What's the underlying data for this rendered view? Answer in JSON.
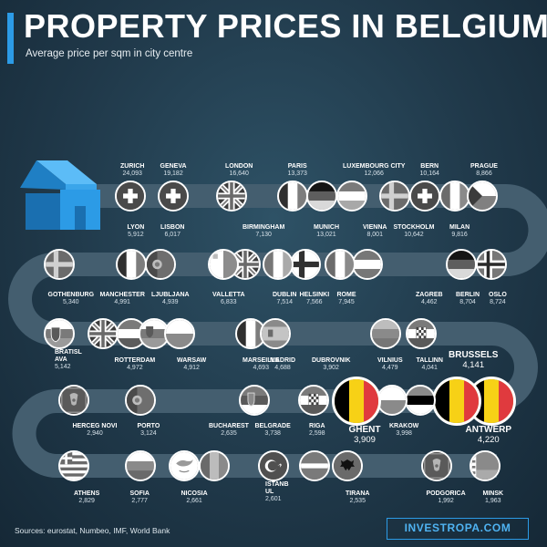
{
  "title": "PROPERTY PRICES IN BELGIUM",
  "subtitle": "Average price per sqm in city centre",
  "sources": "Sources: eurostat, Numbeo, IMF, World Bank",
  "brand": "INVESTROPA.COM",
  "colors": {
    "accent": "#2c9be6",
    "background": "#20394a",
    "road": "#445e6f",
    "house": "#2c9be6"
  },
  "chart_data": {
    "type": "bar",
    "categories": [
      "ZURICH",
      "GENEVA",
      "LONDON",
      "PARIS",
      "LUXEMBOURG CITY",
      "BERN",
      "PRAGUE",
      "LYON",
      "LISBON",
      "BIRMINGHAM",
      "MUNICH",
      "VIENNA",
      "STOCKHOLM",
      "MILAN",
      "GOTHENBURG",
      "MANCHESTER",
      "LJUBLJANA",
      "VALLETTA",
      "DUBLIN",
      "HELSINKI",
      "ROME",
      "ZAGREB",
      "BERLIN",
      "OSLO",
      "BRATISLAVA",
      "ROTTERDAM",
      "WARSAW",
      "MARSEILLE",
      "MADRID",
      "DUBROVNIK",
      "VILNIUS",
      "TALLINN",
      "BRUSSELS",
      "HERCEG NOVI",
      "PORTO",
      "BUCHAREST",
      "BELGRADE",
      "RIGA",
      "GHENT",
      "KRAKOW",
      "ANTWERP",
      "ATHENS",
      "SOFIA",
      "NICOSIA",
      "ISTANBUL",
      "TIRANA",
      "PODGORICA",
      "MINSK"
    ],
    "values": [
      24093,
      19182,
      16640,
      13373,
      12066,
      10164,
      8866,
      5912,
      6017,
      7130,
      13021,
      8001,
      10642,
      9816,
      5340,
      4991,
      4939,
      6833,
      7514,
      7566,
      7945,
      4462,
      8704,
      8724,
      5142,
      4972,
      4912,
      4693,
      4688,
      3902,
      4479,
      4041,
      4141,
      2940,
      3124,
      2635,
      3738,
      2598,
      3909,
      3998,
      4220,
      2829,
      2777,
      2661,
      2601,
      2535,
      1992,
      1963
    ],
    "labels": [
      {
        "name": "ZURICH",
        "value": "24,093",
        "flag": "ch"
      },
      {
        "name": "GENEVA",
        "value": "19,182",
        "flag": "ch"
      },
      {
        "name": "LONDON",
        "value": "16,640",
        "flag": "uk"
      },
      {
        "name": "PARIS",
        "value": "13,373",
        "flag": "fr"
      },
      {
        "name": "MUNICH",
        "value": "13,021",
        "flag": "de"
      },
      {
        "name": "LUXEMBOURG CITY",
        "value": "12,066",
        "flag": "lu"
      },
      {
        "name": "STOCKHOLM",
        "value": "10,642",
        "flag": "se"
      },
      {
        "name": "BERN",
        "value": "10,164",
        "flag": "ch"
      },
      {
        "name": "MILAN",
        "value": "9,816",
        "flag": "it"
      },
      {
        "name": "PRAGUE",
        "value": "8,866",
        "flag": "cz"
      },
      {
        "name": "OSLO",
        "value": "8,724",
        "flag": "no"
      },
      {
        "name": "BERLIN",
        "value": "8,704",
        "flag": "de"
      },
      {
        "name": "VIENNA",
        "value": "8,001",
        "flag": "at"
      },
      {
        "name": "ROME",
        "value": "7,945",
        "flag": "it"
      },
      {
        "name": "HELSINKI",
        "value": "7,566",
        "flag": "fi"
      },
      {
        "name": "DUBLIN",
        "value": "7,514",
        "flag": "ie"
      },
      {
        "name": "BIRMINGHAM",
        "value": "7,130",
        "flag": "uk"
      },
      {
        "name": "VALLETTA",
        "value": "6,833",
        "flag": "mt"
      },
      {
        "name": "LISBON",
        "value": "6,017",
        "flag": "pt"
      },
      {
        "name": "LYON",
        "value": "5,912",
        "flag": "fr"
      },
      {
        "name": "GOTHENBURG",
        "value": "5,340",
        "flag": "se"
      },
      {
        "name": "BRATISLAVA",
        "value": "5,142",
        "flag": "sk"
      },
      {
        "name": "MANCHESTER",
        "value": "4,991",
        "flag": "uk"
      },
      {
        "name": "ROTTERDAM",
        "value": "4,972",
        "flag": "nl"
      },
      {
        "name": "LJUBLJANA",
        "value": "4,939",
        "flag": "si"
      },
      {
        "name": "WARSAW",
        "value": "4,912",
        "flag": "pl"
      },
      {
        "name": "MARSEILLE",
        "value": "4,693",
        "flag": "fr"
      },
      {
        "name": "MADRID",
        "value": "4,688",
        "flag": "es"
      },
      {
        "name": "VILNIUS",
        "value": "4,479",
        "flag": "lt"
      },
      {
        "name": "ZAGREB",
        "value": "4,462",
        "flag": "hr"
      },
      {
        "name": "ANTWERP",
        "value": "4,220",
        "flag": "be"
      },
      {
        "name": "BRUSSELS",
        "value": "4,141",
        "flag": "be"
      },
      {
        "name": "TALLINN",
        "value": "4,041",
        "flag": "ee"
      },
      {
        "name": "KRAKOW",
        "value": "3,998",
        "flag": "pl"
      },
      {
        "name": "GHENT",
        "value": "3,909",
        "flag": "be"
      },
      {
        "name": "DUBROVNIK",
        "value": "3,902",
        "flag": "hr"
      },
      {
        "name": "BELGRADE",
        "value": "3,738",
        "flag": "rs"
      },
      {
        "name": "PORTO",
        "value": "3,124",
        "flag": "pt"
      },
      {
        "name": "HERCEG NOVI",
        "value": "2,940",
        "flag": "me"
      },
      {
        "name": "ATHENS",
        "value": "2,829",
        "flag": "gr"
      },
      {
        "name": "SOFIA",
        "value": "2,777",
        "flag": "bg"
      },
      {
        "name": "NICOSIA",
        "value": "2,661",
        "flag": "cy"
      },
      {
        "name": "BUCHAREST",
        "value": "2,635",
        "flag": "ro"
      },
      {
        "name": "ISTANBUL",
        "value": "2,601",
        "flag": "tr"
      },
      {
        "name": "RIGA",
        "value": "2,598",
        "flag": "lv"
      },
      {
        "name": "TIRANA",
        "value": "2,535",
        "flag": "al"
      },
      {
        "name": "PODGORICA",
        "value": "1,992",
        "flag": "me"
      },
      {
        "name": "MINSK",
        "value": "1,963",
        "flag": "by"
      }
    ],
    "highlight": [
      "BRUSSELS",
      "GHENT",
      "ANTWERP"
    ],
    "xlabel": "",
    "ylabel": ""
  }
}
